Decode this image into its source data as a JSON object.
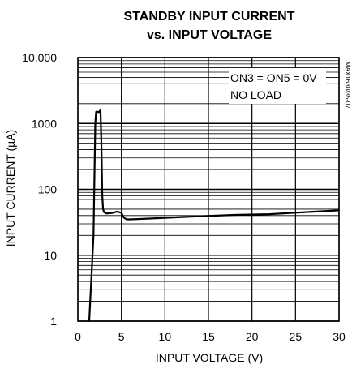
{
  "chart_data": {
    "type": "line",
    "title_line1": "STANDBY INPUT CURRENT",
    "title_line2": "vs. INPUT VOLTAGE",
    "xlabel": "INPUT VOLTAGE (V)",
    "ylabel": "INPUT CURRENT (µA)",
    "xlim": [
      0,
      30
    ],
    "ylim": [
      1,
      10000
    ],
    "yscale": "log",
    "x_ticks": [
      0,
      5,
      10,
      15,
      20,
      25,
      30
    ],
    "x_tick_labels": [
      "0",
      "5",
      "10",
      "15",
      "20",
      "25",
      "30"
    ],
    "y_ticks": [
      1,
      10,
      100,
      1000,
      10000
    ],
    "y_tick_labels": [
      "1",
      "10",
      "100",
      "1000",
      "10,000"
    ],
    "grid": true,
    "annotations": [
      "ON3 = ON5 = 0V",
      "NO LOAD"
    ],
    "part_number": "MAX1630/35-07",
    "series": [
      {
        "x": [
          1.3,
          1.8,
          2.0,
          2.1,
          2.2,
          2.4,
          2.6,
          2.7,
          2.8,
          2.9,
          3.0,
          3.3,
          4.0,
          4.5,
          5.0,
          5.3,
          5.6,
          6.0,
          8.0,
          10.0,
          14.0,
          18.0,
          22.0,
          26.0,
          30.0
        ],
        "y": [
          1,
          20,
          1000,
          1500,
          1520,
          1480,
          1600,
          500,
          80,
          50,
          45,
          43,
          44,
          46,
          44,
          37,
          35,
          35,
          36,
          37,
          39,
          41,
          42,
          45,
          48
        ]
      }
    ]
  }
}
